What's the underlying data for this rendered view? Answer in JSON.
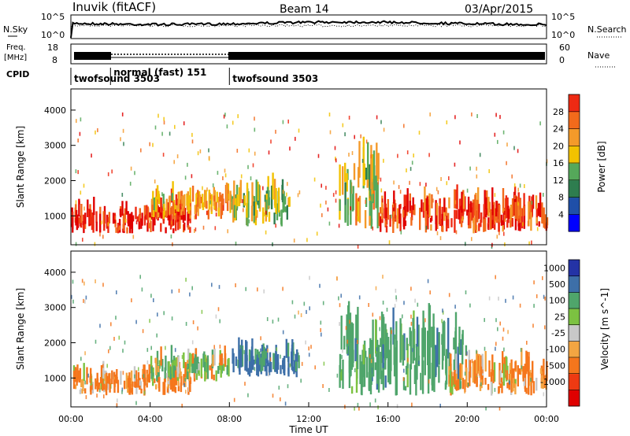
{
  "header": {
    "station": "Inuvik (fitACF)",
    "beam": "Beam 14",
    "date": "03/Apr/2015"
  },
  "noise_panel": {
    "left_label": "N.Sky",
    "left_ticks": [
      "10^5",
      "10^0"
    ],
    "right_label": "N.Search",
    "right_ticks": [
      "10^5",
      "10^0"
    ]
  },
  "freq_panel": {
    "left_label_1": "Freq.",
    "left_label_2": "[MHz]",
    "left_ticks": [
      "18",
      "8"
    ],
    "right_label": "Nave",
    "right_ticks": [
      "60",
      "0"
    ]
  },
  "cpid": {
    "label": "CPID",
    "programs": [
      {
        "name": "twofsound 3503",
        "start_hour": 0.0
      },
      {
        "name": "normal (fast) 151",
        "start_hour": 2.0
      },
      {
        "name": "twofsound 3503",
        "start_hour": 8.0
      }
    ]
  },
  "colors": {
    "power_scale": [
      "#0000ff",
      "#1f4fa8",
      "#2e7d4f",
      "#55a85a",
      "#f2c200",
      "#f49a2a",
      "#f26a1b",
      "#ee2a13",
      "#e00000"
    ],
    "velocity_scale": [
      "#e00000",
      "#ee3a12",
      "#f5761c",
      "#f3a542",
      "#c8c8c8",
      "#7cc241",
      "#4fa56b",
      "#3d6fa8",
      "#2433a6"
    ]
  },
  "chart_data": [
    {
      "type": "heatmap",
      "quantity": "power",
      "ylabel": "Slant Range [km]",
      "y_ticks": [
        "1000",
        "2000",
        "3000",
        "4000"
      ],
      "ylim": [
        180,
        4600
      ],
      "xlim": [
        0,
        24
      ],
      "colorbar": {
        "label": "Power [dB]",
        "ticks": [
          "4",
          "8",
          "12",
          "16",
          "20",
          "24",
          "28"
        ],
        "range": [
          0,
          32
        ]
      },
      "bands": [
        {
          "t": [
            0.0,
            6.0
          ],
          "range_km": [
            500,
            1400
          ],
          "value_db": 28
        },
        {
          "t": [
            4.0,
            8.0
          ],
          "range_km": [
            900,
            1800
          ],
          "value_db": 20
        },
        {
          "t": [
            8.0,
            11.0
          ],
          "range_km": [
            700,
            2000
          ],
          "value_db": 14
        },
        {
          "t": [
            13.5,
            15.5
          ],
          "range_km": [
            600,
            3200
          ],
          "value_db": 16
        },
        {
          "t": [
            15.5,
            24.0
          ],
          "range_km": [
            500,
            1700
          ],
          "value_db": 26
        }
      ]
    },
    {
      "type": "heatmap",
      "quantity": "velocity",
      "ylabel": "Slant Range [km]",
      "y_ticks": [
        "1000",
        "2000",
        "3000",
        "4000"
      ],
      "ylim": [
        180,
        4600
      ],
      "xlim": [
        0,
        24
      ],
      "xlabel": "Time UT",
      "x_ticks": [
        "00:00",
        "04:00",
        "08:00",
        "12:00",
        "16:00",
        "20:00",
        "00:00"
      ],
      "colorbar": {
        "label": "Velocity [m s^-1]",
        "ticks": [
          "1000",
          "500",
          "100",
          "25",
          "-25",
          "-100",
          "-500",
          "-1000"
        ]
      },
      "bands": [
        {
          "t": [
            0.0,
            6.0
          ],
          "range_km": [
            500,
            1300
          ],
          "value_ms": -200
        },
        {
          "t": [
            4.0,
            8.0
          ],
          "range_km": [
            900,
            1800
          ],
          "value_ms": 80
        },
        {
          "t": [
            8.0,
            11.5
          ],
          "range_km": [
            1000,
            2000
          ],
          "value_ms": 600
        },
        {
          "t": [
            13.5,
            20.0
          ],
          "range_km": [
            500,
            3000
          ],
          "value_ms": 300
        },
        {
          "t": [
            19.0,
            24.0
          ],
          "range_km": [
            500,
            1700
          ],
          "value_ms": -150
        }
      ]
    }
  ]
}
